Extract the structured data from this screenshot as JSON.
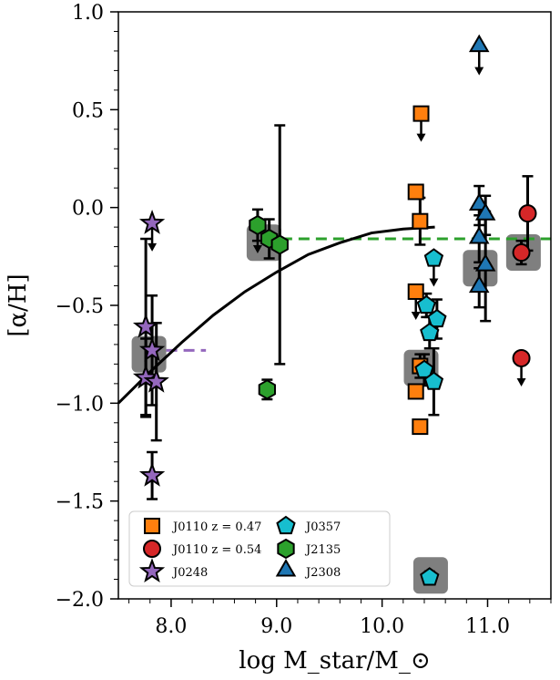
{
  "chart_data": {
    "type": "scatter",
    "xlabel": "log M_star/M_⊙",
    "ylabel": "[α/H]",
    "xlim": [
      7.5,
      11.6
    ],
    "ylim": [
      -2.0,
      1.0
    ],
    "x_ticks": [
      8.0,
      9.0,
      10.0,
      11.0
    ],
    "x_tick_labels": [
      "8.0",
      "9.0",
      "10.0",
      "11.0"
    ],
    "y_ticks": [
      -2.0,
      -1.5,
      -1.0,
      -0.5,
      0.0,
      0.5,
      1.0
    ],
    "y_tick_labels": [
      "−2.0",
      "−1.5",
      "−1.0",
      "−0.5",
      "0.0",
      "0.5",
      "1.0"
    ],
    "grid": false,
    "legend_position": "lower-left",
    "series": [
      {
        "name": "J0110 z = 0.47",
        "marker": "square",
        "color": "#ff7f0e",
        "points": [
          {
            "x": 10.37,
            "y": 0.48,
            "upper_limit": true
          },
          {
            "x": 10.32,
            "y": 0.08,
            "err": 0.03
          },
          {
            "x": 10.36,
            "y": -0.07,
            "err": 0.12
          },
          {
            "x": 10.32,
            "y": -0.43,
            "err": 0.03,
            "upper_limit": true
          },
          {
            "x": 10.36,
            "y": -0.81,
            "err": 0.06
          },
          {
            "x": 10.32,
            "y": -0.94,
            "err": 0.03
          },
          {
            "x": 10.36,
            "y": -1.12,
            "err": 0.03
          }
        ]
      },
      {
        "name": "J0110 z = 0.54",
        "marker": "circle",
        "color": "#d62728",
        "points": [
          {
            "x": 11.38,
            "y": -0.03,
            "err": 0.19
          },
          {
            "x": 11.32,
            "y": -0.23,
            "err": 0.06
          },
          {
            "x": 11.32,
            "y": -0.77,
            "upper_limit": true
          }
        ]
      },
      {
        "name": "J0248",
        "marker": "star",
        "color": "#9467bd",
        "points": [
          {
            "x": 7.82,
            "y": -0.08,
            "upper_limit": true
          },
          {
            "x": 7.76,
            "y": -0.61,
            "err": 0.45
          },
          {
            "x": 7.82,
            "y": -0.73,
            "err": 0.28
          },
          {
            "x": 7.76,
            "y": -0.87,
            "err": 0.2
          },
          {
            "x": 7.86,
            "y": -0.89,
            "err": 0.3
          },
          {
            "x": 7.82,
            "y": -1.37,
            "err": 0.12
          }
        ]
      },
      {
        "name": "J0357",
        "marker": "pentagon",
        "color": "#17becf",
        "points": [
          {
            "x": 10.49,
            "y": -0.26,
            "upper_limit": true
          },
          {
            "x": 10.42,
            "y": -0.5,
            "err": 0.06
          },
          {
            "x": 10.52,
            "y": -0.57,
            "err": 0.1
          },
          {
            "x": 10.45,
            "y": -0.64,
            "err": 0.08
          },
          {
            "x": 10.4,
            "y": -0.83,
            "err": 0.08
          },
          {
            "x": 10.49,
            "y": -0.89,
            "err": 0.17
          },
          {
            "x": 10.45,
            "y": -1.89,
            "err": 0.03
          }
        ]
      },
      {
        "name": "J2135",
        "marker": "hexagon",
        "color": "#2ca02c",
        "points": [
          {
            "x": 8.82,
            "y": -0.09,
            "err": 0.08,
            "upper_limit": true
          },
          {
            "x": 8.93,
            "y": -0.16,
            "err": 0.1
          },
          {
            "x": 9.03,
            "y": -0.19,
            "err": 0.61
          },
          {
            "x": 8.91,
            "y": -0.93,
            "err": 0.05
          }
        ]
      },
      {
        "name": "J2308",
        "marker": "triangle",
        "color": "#1f77b4",
        "points": [
          {
            "x": 10.92,
            "y": 0.82,
            "upper_limit": true
          },
          {
            "x": 10.92,
            "y": 0.01,
            "err": 0.1
          },
          {
            "x": 10.98,
            "y": -0.04,
            "err": 0.1
          },
          {
            "x": 10.92,
            "y": -0.16,
            "err": 0.12
          },
          {
            "x": 10.98,
            "y": -0.3,
            "err": 0.28
          },
          {
            "x": 10.92,
            "y": -0.41,
            "err": 0.1
          }
        ]
      }
    ],
    "highlight_boxes": [
      {
        "x": 7.79,
        "y": -0.75
      },
      {
        "x": 8.88,
        "y": -0.18
      },
      {
        "x": 10.37,
        "y": -0.82
      },
      {
        "x": 10.93,
        "y": -0.31
      },
      {
        "x": 11.34,
        "y": -0.23
      },
      {
        "x": 10.46,
        "y": -1.88
      }
    ],
    "mean_lines": [
      {
        "color": "#9467bd",
        "x0": 7.79,
        "x1": 8.33,
        "y": -0.73
      },
      {
        "color": "#2ca02c",
        "x0": 8.88,
        "x1": 11.6,
        "y": -0.16
      }
    ],
    "fit_curve": {
      "x": [
        7.5,
        7.8,
        8.1,
        8.4,
        8.7,
        9.0,
        9.3,
        9.6,
        9.9,
        10.2,
        10.5
      ],
      "y": [
        -1.0,
        -0.84,
        -0.69,
        -0.55,
        -0.43,
        -0.33,
        -0.24,
        -0.18,
        -0.13,
        -0.11,
        -0.1
      ]
    }
  }
}
